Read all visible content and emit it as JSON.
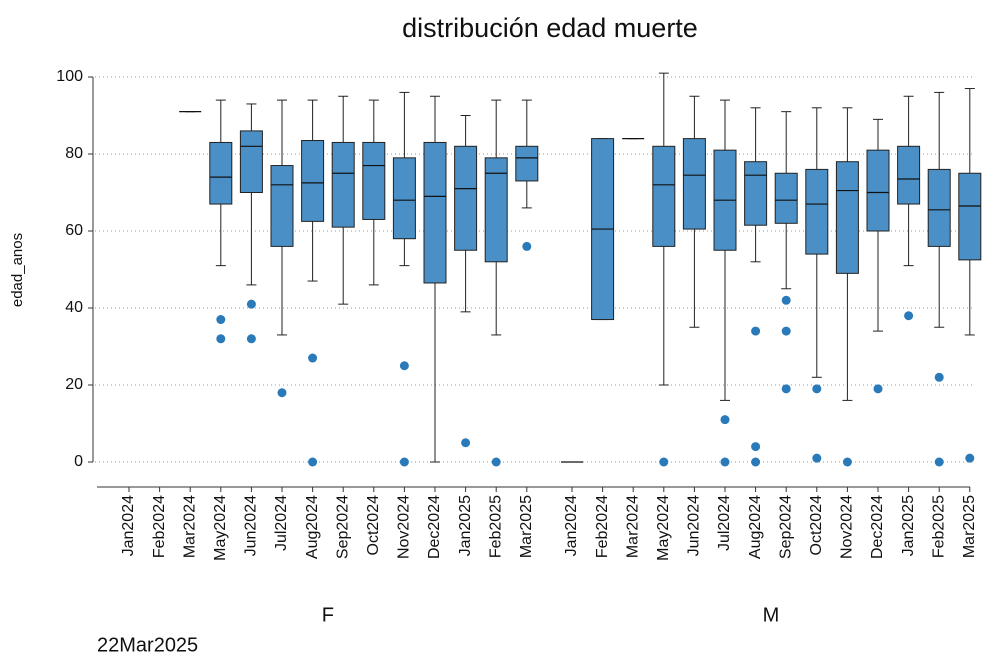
{
  "chart_data": {
    "type": "box",
    "title": "distribución edad muerte",
    "y_label": "edad_anos",
    "note": "22Mar2025",
    "ylim": [
      0,
      100
    ],
    "yticks": [
      0,
      20,
      40,
      60,
      80,
      100
    ],
    "grid": true,
    "box_color": "#4a8fc6",
    "outlier_color": "#2a7ab9",
    "groups": [
      {
        "name": "F",
        "categories": [
          "Jan2024",
          "Feb2024",
          "Mar2024",
          "May2024",
          "Jun2024",
          "Jul2024",
          "Aug2024",
          "Sep2024",
          "Oct2024",
          "Nov2024",
          "Dec2024",
          "Jan2025",
          "Feb2025",
          "Mar2025"
        ],
        "boxes": [
          null,
          null,
          {
            "min": 91,
            "q1": 91,
            "median": 91,
            "q3": 91,
            "max": 91
          },
          {
            "min": 51,
            "q1": 67,
            "median": 74,
            "q3": 83,
            "max": 94
          },
          {
            "min": 46,
            "q1": 70,
            "median": 82,
            "q3": 86,
            "max": 93
          },
          {
            "min": 33,
            "q1": 56,
            "median": 72,
            "q3": 77,
            "max": 94
          },
          {
            "min": 47,
            "q1": 62.5,
            "median": 72.5,
            "q3": 83.5,
            "max": 94
          },
          {
            "min": 41,
            "q1": 61,
            "median": 75,
            "q3": 83,
            "max": 95
          },
          {
            "min": 46,
            "q1": 63,
            "median": 77,
            "q3": 83,
            "max": 94
          },
          {
            "min": 51,
            "q1": 58,
            "median": 68,
            "q3": 79,
            "max": 96
          },
          {
            "min": 0,
            "q1": 46.5,
            "median": 69,
            "q3": 83,
            "max": 95
          },
          {
            "min": 39,
            "q1": 55,
            "median": 71,
            "q3": 82,
            "max": 90
          },
          {
            "min": 33,
            "q1": 52,
            "median": 75,
            "q3": 79,
            "max": 94
          },
          {
            "min": 66,
            "q1": 73,
            "median": 79,
            "q3": 82,
            "max": 94
          }
        ],
        "outliers": [
          [],
          [],
          [],
          [
            37,
            32
          ],
          [
            41,
            32
          ],
          [
            18
          ],
          [
            27,
            0
          ],
          [],
          [],
          [
            25,
            0
          ],
          [],
          [
            5
          ],
          [
            0
          ],
          [
            56
          ]
        ]
      },
      {
        "name": "M",
        "categories": [
          "Jan2024",
          "Feb2024",
          "Mar2024",
          "May2024",
          "Jun2024",
          "Jul2024",
          "Aug2024",
          "Sep2024",
          "Oct2024",
          "Nov2024",
          "Dec2024",
          "Jan2025",
          "Feb2025",
          "Mar2025"
        ],
        "boxes": [
          {
            "min": 0,
            "q1": 0,
            "median": 0,
            "q3": 0,
            "max": 0
          },
          {
            "min": 37,
            "q1": 37,
            "median": 60.5,
            "q3": 84,
            "max": 84
          },
          {
            "min": 84,
            "q1": 84,
            "median": 84,
            "q3": 84,
            "max": 84
          },
          {
            "min": 20,
            "q1": 56,
            "median": 72,
            "q3": 82,
            "max": 101
          },
          {
            "min": 35,
            "q1": 60.5,
            "median": 74.5,
            "q3": 84,
            "max": 95
          },
          {
            "min": 16,
            "q1": 55,
            "median": 68,
            "q3": 81,
            "max": 94
          },
          {
            "min": 52,
            "q1": 61.5,
            "median": 74.5,
            "q3": 78,
            "max": 92
          },
          {
            "min": 45,
            "q1": 62,
            "median": 68,
            "q3": 75,
            "max": 91
          },
          {
            "min": 22,
            "q1": 54,
            "median": 67,
            "q3": 76,
            "max": 92
          },
          {
            "min": 16,
            "q1": 49,
            "median": 70.5,
            "q3": 78,
            "max": 92
          },
          {
            "min": 34,
            "q1": 60,
            "median": 70,
            "q3": 81,
            "max": 89
          },
          {
            "min": 51,
            "q1": 67,
            "median": 73.5,
            "q3": 82,
            "max": 95
          },
          {
            "min": 35,
            "q1": 56,
            "median": 65.5,
            "q3": 76,
            "max": 96
          },
          {
            "min": 33,
            "q1": 52.5,
            "median": 66.5,
            "q3": 75,
            "max": 97
          }
        ],
        "outliers": [
          [],
          [],
          [],
          [
            0
          ],
          [],
          [
            11,
            0
          ],
          [
            34,
            4,
            0
          ],
          [
            42,
            34,
            19
          ],
          [
            19,
            1
          ],
          [
            0
          ],
          [
            19
          ],
          [
            38
          ],
          [
            22,
            0
          ],
          [
            1
          ]
        ]
      }
    ]
  }
}
